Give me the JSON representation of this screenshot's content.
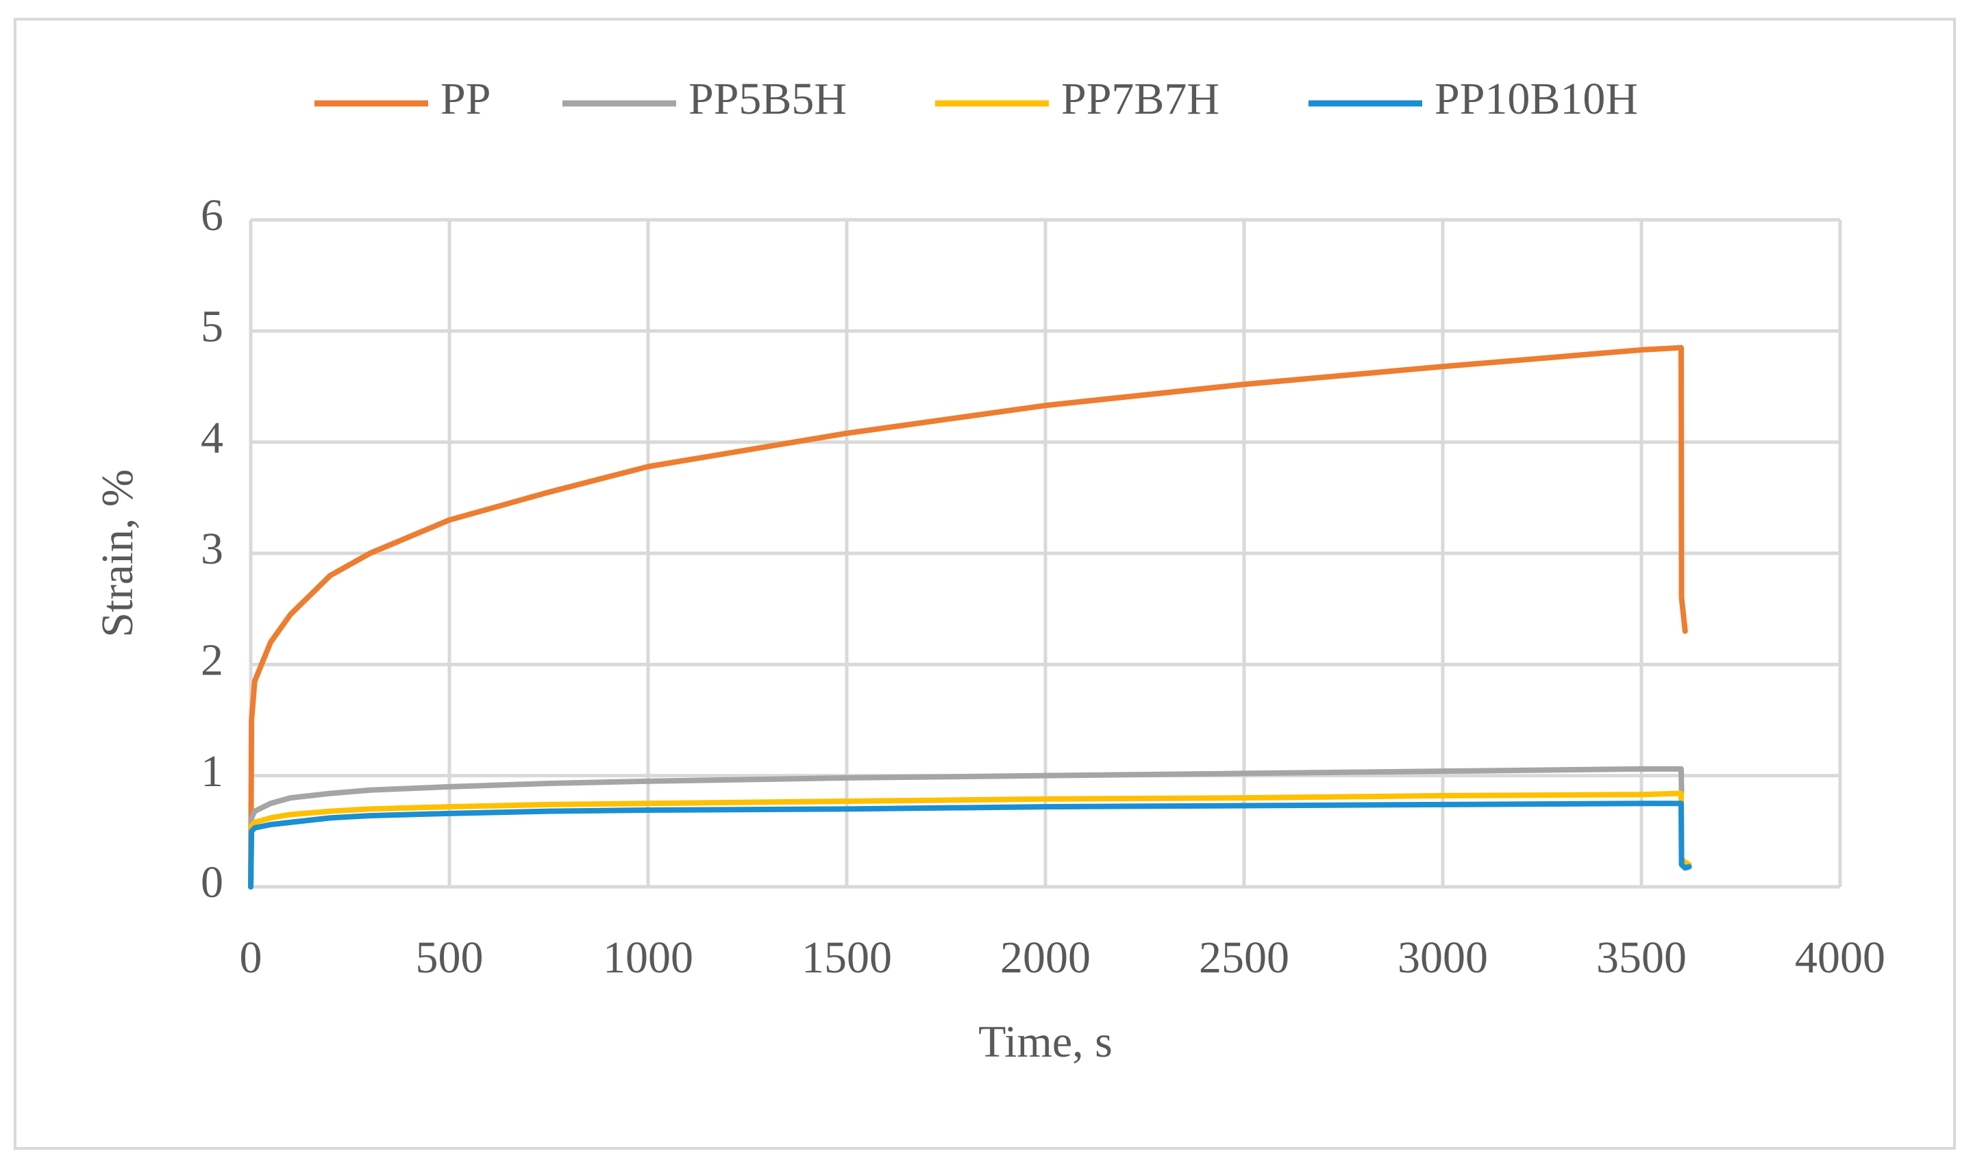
{
  "chart_data": {
    "type": "line",
    "x_label": "Time, s",
    "y_label": "Strain, %",
    "x": [
      0,
      2,
      10,
      50,
      100,
      200,
      300,
      500,
      750,
      1000,
      1500,
      2000,
      2500,
      3000,
      3500,
      3600,
      3601,
      3610,
      3620
    ],
    "series": [
      {
        "name": "PP",
        "color": "#ed7d31",
        "values": [
          0,
          1.5,
          1.85,
          2.2,
          2.45,
          2.8,
          3.0,
          3.3,
          3.55,
          3.78,
          4.08,
          4.33,
          4.52,
          4.68,
          4.83,
          4.85,
          2.6,
          2.3,
          null
        ]
      },
      {
        "name": "PP5B5H",
        "color": "#a5a5a5",
        "values": [
          0,
          0.62,
          0.68,
          0.75,
          0.8,
          0.84,
          0.87,
          0.9,
          0.93,
          0.95,
          0.98,
          1.0,
          1.02,
          1.04,
          1.06,
          1.06,
          0.85,
          null,
          null
        ]
      },
      {
        "name": "PP7B7H",
        "color": "#ffc000",
        "values": [
          0,
          0.55,
          0.58,
          0.62,
          0.65,
          0.68,
          0.7,
          0.72,
          0.74,
          0.75,
          0.77,
          0.79,
          0.8,
          0.82,
          0.83,
          0.84,
          0.25,
          0.22,
          0.2
        ]
      },
      {
        "name": "PP10B10H",
        "color": "#1b8fd2",
        "values": [
          0,
          0.5,
          0.53,
          0.56,
          0.58,
          0.62,
          0.64,
          0.66,
          0.68,
          0.69,
          0.7,
          0.72,
          0.73,
          0.74,
          0.75,
          0.75,
          0.2,
          0.17,
          0.18
        ]
      }
    ],
    "xlim": [
      0,
      4000
    ],
    "xticks": [
      0,
      500,
      1000,
      1500,
      2000,
      2500,
      3000,
      3500,
      4000
    ],
    "ylim": [
      0,
      6
    ],
    "yticks": [
      0,
      1,
      2,
      3,
      4,
      5,
      6
    ],
    "grid": true,
    "legend": "top"
  }
}
